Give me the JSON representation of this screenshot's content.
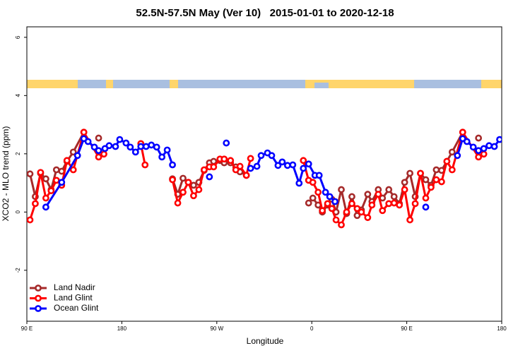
{
  "chart_data": {
    "type": "line",
    "title": "52.5N-57.5N May (Ver 10)   2015-01-01 to 2020-12-18",
    "x_label": "Longitude",
    "y_label": "XCO2 - MLO trend (ppm)",
    "xlim": [
      90,
      540
    ],
    "ylim": [
      -3.75,
      6.36
    ],
    "xticks": [
      {
        "value": 90,
        "label": "90 E"
      },
      180,
      {
        "value": 270,
        "label": "90 W"
      },
      {
        "value": 360,
        "label": "0"
      },
      {
        "value": 450,
        "label": "90 E"
      },
      {
        "value": 540,
        "label": "180"
      }
    ],
    "yticks": [
      -2,
      0,
      2,
      4,
      6
    ],
    "legend": "bottom-left",
    "series": [
      {
        "name": "Land Nadir",
        "color": "#a52a2a",
        "x": [
          93,
          98,
          103,
          108,
          113,
          118,
          123,
          128,
          134,
          144,
          null,
          158,
          null,
          228,
          233,
          238,
          243,
          248,
          253,
          258,
          263,
          267,
          273,
          277,
          283,
          288,
          292,
          298,
          null,
          357,
          361,
          366,
          370,
          375,
          379,
          383,
          388,
          393,
          398,
          403,
          407,
          413,
          417,
          423,
          427,
          433,
          438,
          443,
          448,
          453,
          458,
          463,
          468,
          473,
          478,
          483,
          488,
          493,
          503,
          null,
          518
        ],
        "values": [
          1.31,
          0.53,
          1.33,
          1.14,
          0.77,
          1.45,
          1.4,
          1.74,
          2.06,
          2.74,
          null,
          2.54,
          null,
          1.14,
          0.61,
          1.16,
          1.02,
          0.92,
          1.02,
          1.43,
          1.69,
          1.74,
          1.77,
          1.69,
          1.69,
          1.55,
          1.38,
          1.26,
          null,
          0.31,
          0.48,
          0.24,
          0,
          0.24,
          0.44,
          0,
          0.77,
          -0.05,
          0.53,
          -0.12,
          0.07,
          0.61,
          0.36,
          0.77,
          0.48,
          0.77,
          0.53,
          0.29,
          1.02,
          1.33,
          0.53,
          1.33,
          1.11,
          0.92,
          1.45,
          1.43,
          1.74,
          2.06,
          2.74,
          null,
          2.54
        ]
      },
      {
        "name": "Land Glint",
        "color": "#ff0000",
        "x": [
          93,
          98,
          103,
          108,
          113,
          118,
          123,
          128,
          134,
          144,
          158,
          163,
          null,
          198,
          202,
          null,
          228,
          233,
          238,
          243,
          248,
          253,
          258,
          263,
          267,
          273,
          277,
          283,
          288,
          292,
          298,
          302,
          null,
          352,
          357,
          361,
          366,
          370,
          375,
          379,
          383,
          388,
          393,
          398,
          403,
          407,
          413,
          417,
          423,
          427,
          433,
          438,
          443,
          448,
          453,
          458,
          463,
          468,
          473,
          478,
          483,
          488,
          493,
          503,
          518,
          523
        ],
        "values": [
          -0.27,
          0.29,
          1.36,
          0.48,
          0.73,
          1.09,
          0.92,
          1.77,
          1.45,
          2.74,
          1.89,
          1.99,
          null,
          2.35,
          1.62,
          null,
          1.11,
          0.31,
          0.68,
          1.02,
          0.56,
          0.77,
          1.45,
          1.55,
          1.55,
          1.82,
          1.82,
          1.77,
          1.45,
          1.57,
          1.26,
          1.84,
          null,
          1.77,
          1.09,
          1.02,
          0.68,
          0.05,
          0.29,
          0.12,
          -0.27,
          -0.44,
          0,
          0.29,
          0.12,
          0,
          -0.19,
          0.24,
          0.61,
          0.05,
          0.29,
          0.31,
          0.24,
          0.77,
          -0.27,
          0.29,
          1.33,
          0.48,
          0.85,
          1.11,
          1.04,
          1.74,
          1.45,
          2.74,
          1.89,
          1.99
        ]
      },
      {
        "name": "Ocean Glint",
        "color": "#0000ff",
        "x": [
          108,
          123,
          138,
          144,
          148,
          154,
          158,
          164,
          168,
          174,
          178,
          184,
          188,
          193,
          198,
          203,
          208,
          213,
          218,
          223,
          228,
          null,
          263,
          null,
          279,
          null,
          302,
          308,
          312,
          318,
          322,
          328,
          332,
          337,
          342,
          348,
          352,
          357,
          363,
          367,
          373,
          377,
          382,
          null,
          468,
          null,
          498,
          503,
          507,
          513,
          518,
          523,
          528,
          533,
          538
        ],
        "values": [
          0.17,
          1.02,
          1.94,
          2.52,
          2.42,
          2.23,
          2.11,
          2.18,
          2.28,
          2.25,
          2.49,
          2.37,
          2.23,
          2.06,
          2.25,
          2.25,
          2.3,
          2.23,
          1.89,
          2.13,
          1.62,
          null,
          1.21,
          null,
          2.37,
          null,
          1.5,
          1.57,
          1.94,
          2.03,
          1.94,
          1.6,
          1.72,
          1.6,
          1.62,
          0.99,
          1.5,
          1.65,
          1.26,
          1.26,
          0.68,
          0.53,
          0.36,
          null,
          0.17,
          null,
          1.94,
          2.52,
          2.42,
          2.23,
          2.11,
          2.18,
          2.28,
          2.25,
          2.49
        ]
      }
    ]
  }
}
